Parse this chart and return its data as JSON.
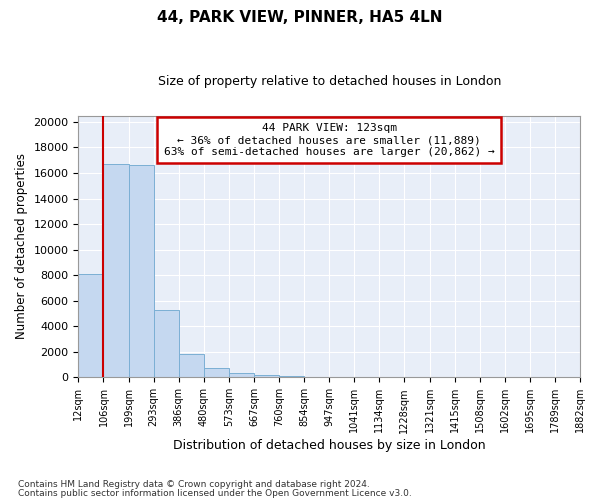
{
  "title1": "44, PARK VIEW, PINNER, HA5 4LN",
  "title2": "Size of property relative to detached houses in London",
  "xlabel": "Distribution of detached houses by size in London",
  "ylabel": "Number of detached properties",
  "bar_color": "#c5d8f0",
  "bar_edge_color": "#7bafd4",
  "bar_heights": [
    8100,
    16700,
    16600,
    5300,
    1800,
    750,
    310,
    200,
    100,
    50,
    30,
    20,
    15,
    12,
    10,
    8,
    7,
    6,
    5,
    4
  ],
  "categories": [
    "12sqm",
    "106sqm",
    "199sqm",
    "293sqm",
    "386sqm",
    "480sqm",
    "573sqm",
    "667sqm",
    "760sqm",
    "854sqm",
    "947sqm",
    "1041sqm",
    "1134sqm",
    "1228sqm",
    "1321sqm",
    "1415sqm",
    "1508sqm",
    "1602sqm",
    "1695sqm",
    "1789sqm",
    "1882sqm"
  ],
  "ylim": [
    0,
    20500
  ],
  "yticks": [
    0,
    2000,
    4000,
    6000,
    8000,
    10000,
    12000,
    14000,
    16000,
    18000,
    20000
  ],
  "vline_x": 1.0,
  "annotation_title": "44 PARK VIEW: 123sqm",
  "annotation_line1": "← 36% of detached houses are smaller (11,889)",
  "annotation_line2": "63% of semi-detached houses are larger (20,862) →",
  "footnote1": "Contains HM Land Registry data © Crown copyright and database right 2024.",
  "footnote2": "Contains public sector information licensed under the Open Government Licence v3.0.",
  "background_color": "#ffffff",
  "plot_bg_color": "#e8eef8",
  "grid_color": "#ffffff",
  "annotation_box_color": "#ffffff",
  "annotation_box_edge": "#cc0000",
  "vline_color": "#cc0000",
  "title1_fontsize": 11,
  "title2_fontsize": 9
}
